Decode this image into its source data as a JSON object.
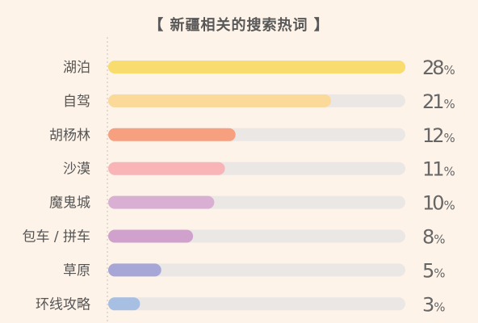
{
  "title": "【 新疆相关的搜索热词 】",
  "chart_data": {
    "type": "bar",
    "orientation": "horizontal",
    "title": "【 新疆相关的搜索热词 】",
    "categories": [
      "湖泊",
      "自驾",
      "胡杨林",
      "沙漠",
      "魔鬼城",
      "包车 / 拼车",
      "草原",
      "环线攻略"
    ],
    "values": [
      28,
      21,
      12,
      11,
      10,
      8,
      5,
      3
    ],
    "value_labels": [
      "28%",
      "21%",
      "12%",
      "11%",
      "10%",
      "8%",
      "5%",
      "3%"
    ],
    "colors": [
      "#f9dc6e",
      "#fbd999",
      "#f6a080",
      "#f9b4b8",
      "#d9b0d3",
      "#cfa1cc",
      "#a6a7d6",
      "#a6bfe2"
    ],
    "track_color": "#ebe7e5",
    "axis_color": "#c9c3bd",
    "xlim": [
      0,
      28
    ],
    "grid": false,
    "legend": "none"
  }
}
